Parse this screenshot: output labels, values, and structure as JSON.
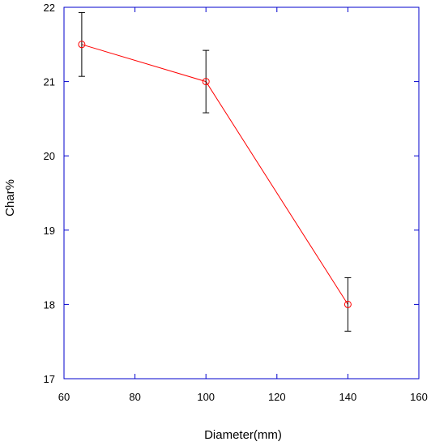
{
  "chart_data": {
    "type": "line",
    "title": "",
    "xlabel": "Diameter(mm)",
    "ylabel": "Char%",
    "xlim": [
      60,
      160
    ],
    "ylim": [
      17,
      22
    ],
    "xticks": [
      60,
      80,
      100,
      120,
      140,
      160
    ],
    "yticks": [
      17,
      18,
      19,
      20,
      21,
      22
    ],
    "grid": false,
    "legend": "none",
    "colors": {
      "axis": "#0000cc",
      "series": "#ff0000",
      "errorbar": "#000000"
    },
    "series": [
      {
        "x": [
          65,
          100,
          140
        ],
        "y": [
          21.5,
          21.0,
          18.0
        ],
        "err": [
          0.43,
          0.42,
          0.36
        ],
        "marker": "open-circle"
      }
    ]
  }
}
